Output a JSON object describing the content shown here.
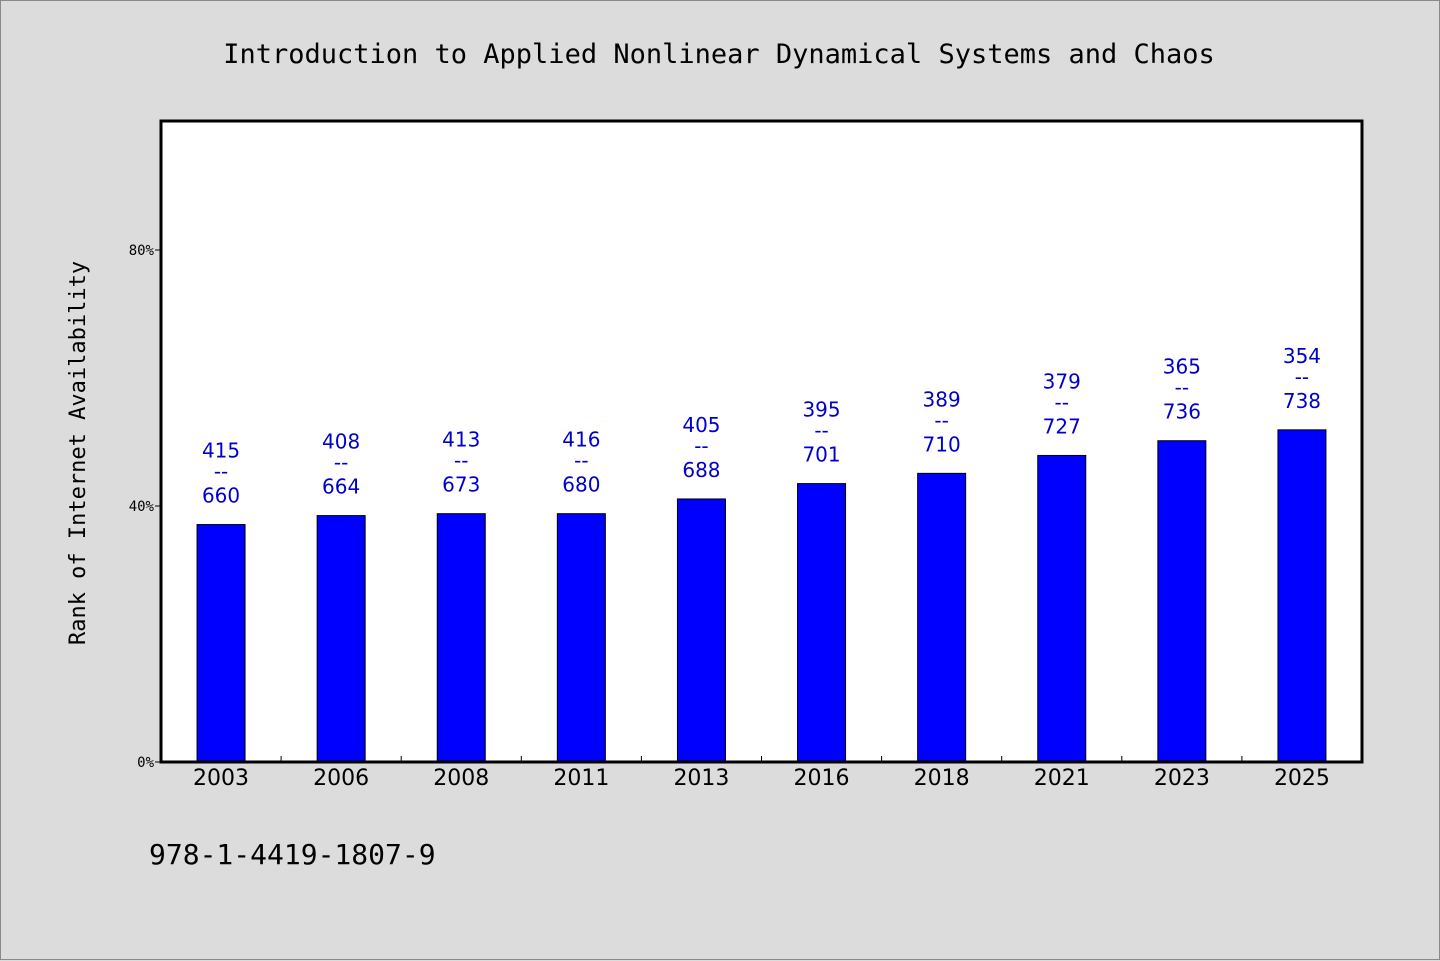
{
  "chart_data": {
    "type": "bar",
    "title": "Introduction to Applied Nonlinear Dynamical Systems and Chaos",
    "xlabel": "",
    "ylabel": "Rank of Internet Availability",
    "ylim": [
      0,
      100
    ],
    "yticks": [
      0,
      40,
      80
    ],
    "ytick_labels": [
      "0%",
      "40%",
      "80%"
    ],
    "categories": [
      "2003",
      "2006",
      "2008",
      "2011",
      "2013",
      "2016",
      "2018",
      "2021",
      "2023",
      "2025"
    ],
    "values": [
      37.1,
      38.5,
      38.8,
      38.8,
      41.1,
      43.5,
      45.1,
      47.9,
      50.2,
      51.9
    ],
    "data_labels": [
      {
        "top": "415",
        "sep": "--",
        "bottom": "660"
      },
      {
        "top": "408",
        "sep": "--",
        "bottom": "664"
      },
      {
        "top": "413",
        "sep": "--",
        "bottom": "673"
      },
      {
        "top": "416",
        "sep": "--",
        "bottom": "680"
      },
      {
        "top": "405",
        "sep": "--",
        "bottom": "688"
      },
      {
        "top": "395",
        "sep": "--",
        "bottom": "701"
      },
      {
        "top": "389",
        "sep": "--",
        "bottom": "710"
      },
      {
        "top": "379",
        "sep": "--",
        "bottom": "727"
      },
      {
        "top": "365",
        "sep": "--",
        "bottom": "736"
      },
      {
        "top": "354",
        "sep": "--",
        "bottom": "738"
      }
    ],
    "bar_color": "#0000ff",
    "label_color": "#0000cc",
    "grid": false
  },
  "footnote": "978-1-4419-1807-9"
}
